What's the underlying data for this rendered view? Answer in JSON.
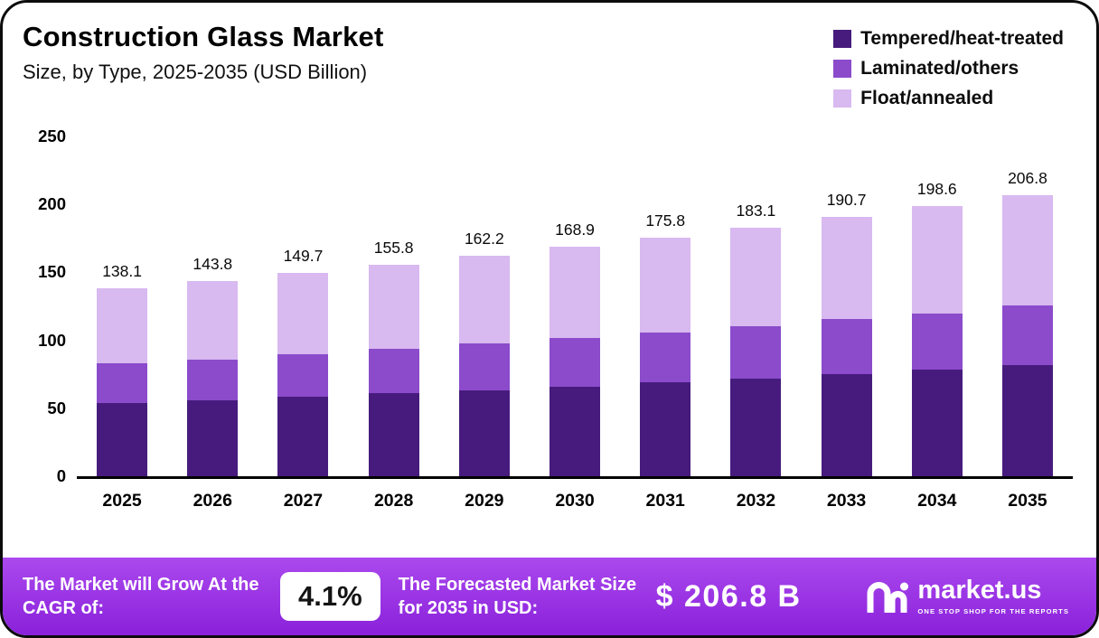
{
  "header": {
    "title": "Construction Glass Market",
    "subtitle": "Size, by Type, 2025-2035 (USD Billion)"
  },
  "legend": [
    {
      "label": "Tempered/heat-treated",
      "color": "#471b7d"
    },
    {
      "label": "Laminated/others",
      "color": "#8b4bcb"
    },
    {
      "label": "Float/annealed",
      "color": "#d8b9f0"
    }
  ],
  "chart_data": {
    "type": "bar",
    "stacked": true,
    "title": "Construction Glass Market Size, by Type, 2025-2035 (USD Billion)",
    "categories": [
      "2025",
      "2026",
      "2027",
      "2028",
      "2029",
      "2030",
      "2031",
      "2032",
      "2033",
      "2034",
      "2035"
    ],
    "series": [
      {
        "name": "Tempered/heat-treated",
        "color": "#471b7d",
        "values": [
          54.0,
          56.0,
          58.5,
          61.0,
          63.5,
          66.0,
          69.0,
          72.0,
          75.0,
          78.5,
          82.0
        ]
      },
      {
        "name": "Laminated/others",
        "color": "#8b4bcb",
        "values": [
          29.0,
          30.0,
          31.5,
          33.0,
          34.5,
          36.0,
          37.0,
          38.5,
          40.5,
          41.5,
          44.0
        ]
      },
      {
        "name": "Float/annealed",
        "color": "#d8b9f0",
        "values": [
          55.1,
          57.8,
          59.7,
          61.8,
          64.2,
          66.9,
          69.8,
          72.6,
          75.2,
          78.6,
          80.8
        ]
      }
    ],
    "totals": [
      138.1,
      143.8,
      149.7,
      155.8,
      162.2,
      168.9,
      175.8,
      183.1,
      190.7,
      198.6,
      206.8
    ],
    "xlabel": "",
    "ylabel": "",
    "y_ticks": [
      0,
      50,
      100,
      150,
      200,
      250
    ],
    "ylim": [
      0,
      250
    ],
    "grid": false,
    "legend_position": "top-right"
  },
  "banner": {
    "cagr_label": "The Market will Grow At the CAGR of:",
    "cagr_value": "4.1%",
    "forecast_label": "The Forecasted Market Size for 2035 in USD:",
    "forecast_value": "$ 206.8 B",
    "brand": "market.us",
    "brand_tagline": "ONE STOP SHOP FOR THE REPORTS"
  }
}
